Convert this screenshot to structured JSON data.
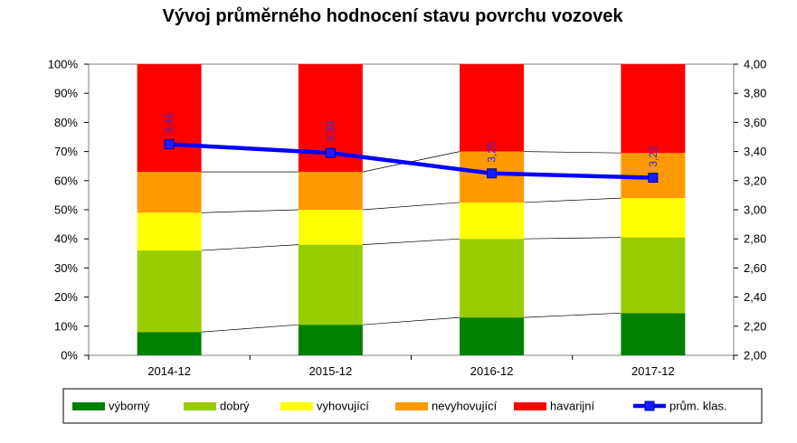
{
  "chart_data": {
    "type": "bar",
    "stacked": true,
    "title": "Vývoj průměrného hodnocení stavu povrchu vozovek",
    "categories": [
      "2014-12",
      "2015-12",
      "2016-12",
      "2017-12"
    ],
    "series": [
      {
        "name": "výborný",
        "color": "#008000",
        "values": [
          8,
          10.5,
          13,
          14.5
        ]
      },
      {
        "name": "dobrý",
        "color": "#99cc00",
        "values": [
          28,
          27.5,
          27,
          26
        ]
      },
      {
        "name": "vyhovující",
        "color": "#ffff00",
        "values": [
          13,
          12,
          12.5,
          13.5
        ]
      },
      {
        "name": "nevyhovující",
        "color": "#ff9900",
        "values": [
          14,
          13,
          17.5,
          15.5
        ]
      },
      {
        "name": "havarijní",
        "color": "#ff0000",
        "values": [
          37,
          37,
          30,
          30.5
        ]
      }
    ],
    "line_series": {
      "name": "prům. klas.",
      "color": "#0000ff",
      "axis": "right",
      "values": [
        3.45,
        3.39,
        3.25,
        3.22
      ],
      "data_labels": [
        "3,45",
        "3,39",
        "3,25",
        "3,22"
      ]
    },
    "y_left": {
      "ylim": [
        0,
        100
      ],
      "ticks": [
        "0%",
        "10%",
        "20%",
        "30%",
        "40%",
        "50%",
        "60%",
        "70%",
        "80%",
        "90%",
        "100%"
      ]
    },
    "y_right": {
      "ylim": [
        2.0,
        4.0
      ],
      "ticks": [
        "2,00",
        "2,20",
        "2,40",
        "2,60",
        "2,80",
        "3,00",
        "3,20",
        "3,40",
        "3,60",
        "3,80",
        "4,00"
      ]
    },
    "series_lines": true,
    "grid": false,
    "legend_position": "bottom"
  }
}
